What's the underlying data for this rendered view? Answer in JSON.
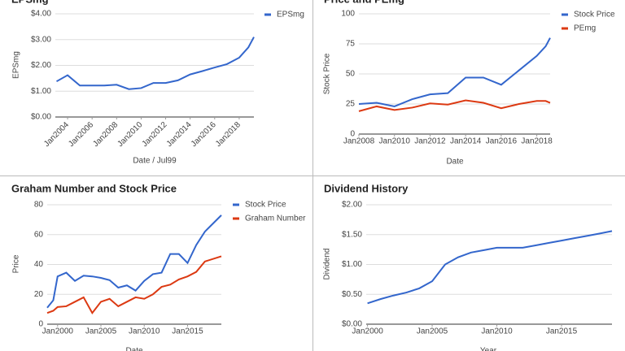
{
  "chart_data": [
    {
      "type": "line",
      "title": "EPSmg",
      "xlabel": "Date / Jul99",
      "ylabel": "EPSmg",
      "legend": "right",
      "grid": true,
      "x": [
        2003.1,
        2004,
        2005,
        2006,
        2007,
        2008,
        2009,
        2010,
        2011,
        2012,
        2013,
        2014,
        2015,
        2016,
        2017,
        2018,
        2018.75,
        2019.2
      ],
      "series": [
        {
          "name": "EPSmg",
          "color": "#3366cc",
          "values": [
            1.38,
            1.62,
            1.22,
            1.22,
            1.22,
            1.25,
            1.08,
            1.12,
            1.32,
            1.32,
            1.42,
            1.65,
            1.78,
            1.92,
            2.05,
            2.3,
            2.7,
            3.1
          ]
        }
      ],
      "xlim": [
        2003,
        2019.2
      ],
      "xticks": [
        {
          "value": 2004,
          "label": "Jan2004"
        },
        {
          "value": 2006,
          "label": "Jan2006"
        },
        {
          "value": 2008,
          "label": "Jan2008"
        },
        {
          "value": 2010,
          "label": "Jan2010"
        },
        {
          "value": 2012,
          "label": "Jan2012"
        },
        {
          "value": 2014,
          "label": "Jan2014"
        },
        {
          "value": 2016,
          "label": "Jan2016"
        },
        {
          "value": 2018,
          "label": "Jan2018"
        }
      ],
      "ylim": [
        0,
        4
      ],
      "yticks": [
        {
          "value": 0,
          "label": "$0.00"
        },
        {
          "value": 1,
          "label": "$1.00"
        },
        {
          "value": 2,
          "label": "$2.00"
        },
        {
          "value": 3,
          "label": "$3.00"
        },
        {
          "value": 4,
          "label": "$4.00"
        }
      ]
    },
    {
      "type": "line",
      "title": "Price and PEmg",
      "xlabel": "Date",
      "ylabel": "Stock Price",
      "legend": "right",
      "grid": true,
      "x": [
        2008,
        2009,
        2010,
        2011,
        2012,
        2013,
        2014,
        2015,
        2016,
        2017,
        2018,
        2018.5,
        2018.75
      ],
      "series": [
        {
          "name": "Stock Price",
          "color": "#3366cc",
          "values": [
            25,
            26,
            23,
            29,
            33,
            34,
            47,
            47,
            41,
            53,
            65,
            73,
            80
          ]
        },
        {
          "name": "PEmg",
          "color": "#dc3912",
          "values": [
            19,
            23,
            20,
            22,
            25.5,
            24.5,
            28,
            26,
            21.5,
            25,
            27.5,
            27.5,
            26
          ]
        }
      ],
      "xlim": [
        2008,
        2018.75
      ],
      "xticks": [
        {
          "value": 2008,
          "label": "Jan2008"
        },
        {
          "value": 2010,
          "label": "Jan2010"
        },
        {
          "value": 2012,
          "label": "Jan2012"
        },
        {
          "value": 2014,
          "label": "Jan2014"
        },
        {
          "value": 2016,
          "label": "Jan2016"
        },
        {
          "value": 2018,
          "label": "Jan2018"
        }
      ],
      "ylim": [
        0,
        100
      ],
      "yticks": [
        0,
        25,
        50,
        75,
        100
      ]
    },
    {
      "type": "line",
      "title": "Graham Number and Stock Price",
      "xlabel": "Date",
      "ylabel": "Price",
      "legend": "right",
      "grid": true,
      "x": [
        1998.8,
        1999.5,
        2000,
        2001,
        2002,
        2003,
        2004,
        2005,
        2006,
        2007,
        2008,
        2009,
        2010,
        2011,
        2012,
        2013,
        2014,
        2015,
        2016,
        2017,
        2018.9
      ],
      "series": [
        {
          "name": "Stock Price",
          "color": "#3366cc",
          "values": [
            11,
            16,
            32,
            34.5,
            29,
            32.5,
            32,
            31,
            29.5,
            24.5,
            26,
            22.5,
            29,
            33.5,
            34.5,
            47,
            47,
            41,
            53,
            62,
            73
          ]
        },
        {
          "name": "Graham Number",
          "color": "#dc3912",
          "values": [
            7.5,
            9,
            11.5,
            12,
            15,
            18,
            7.5,
            15,
            17,
            12,
            15,
            18,
            17,
            20,
            25,
            26.5,
            30,
            32,
            35,
            42,
            45.5
          ]
        }
      ],
      "xlim": [
        1998.8,
        2018.9
      ],
      "xticks": [
        {
          "value": 2000,
          "label": "Jan2000"
        },
        {
          "value": 2005,
          "label": "Jan2005"
        },
        {
          "value": 2010,
          "label": "Jan2010"
        },
        {
          "value": 2015,
          "label": "Jan2015"
        }
      ],
      "ylim": [
        0,
        80
      ],
      "yticks": [
        0,
        20,
        40,
        60,
        80
      ]
    },
    {
      "type": "line",
      "title": "Dividend History",
      "xlabel": "Year",
      "ylabel": "Dividend",
      "grid": true,
      "x": [
        2000,
        2001,
        2002,
        2003,
        2004,
        2005,
        2006,
        2007,
        2008,
        2009,
        2010,
        2011,
        2012,
        2013,
        2014,
        2015,
        2016,
        2017,
        2018,
        2018.9
      ],
      "values": [
        0.35,
        0.42,
        0.48,
        0.53,
        0.6,
        0.72,
        1.0,
        1.12,
        1.2,
        1.24,
        1.28,
        1.28,
        1.28,
        1.32,
        1.36,
        1.4,
        1.44,
        1.48,
        1.52,
        1.56
      ],
      "color": "#3366cc",
      "xlim": [
        1999.9,
        2018.9
      ],
      "xticks": [
        {
          "value": 2000,
          "label": "Jan2000"
        },
        {
          "value": 2005,
          "label": "Jan2005"
        },
        {
          "value": 2010,
          "label": "Jan2010"
        },
        {
          "value": 2015,
          "label": "Jan2015"
        }
      ],
      "ylim": [
        0,
        2
      ],
      "yticks": [
        {
          "value": 0,
          "label": "$0.00"
        },
        {
          "value": 0.5,
          "label": "$0.50"
        },
        {
          "value": 1,
          "label": "$1.00"
        },
        {
          "value": 1.5,
          "label": "$1.50"
        },
        {
          "value": 2,
          "label": "$2.00"
        }
      ]
    }
  ]
}
